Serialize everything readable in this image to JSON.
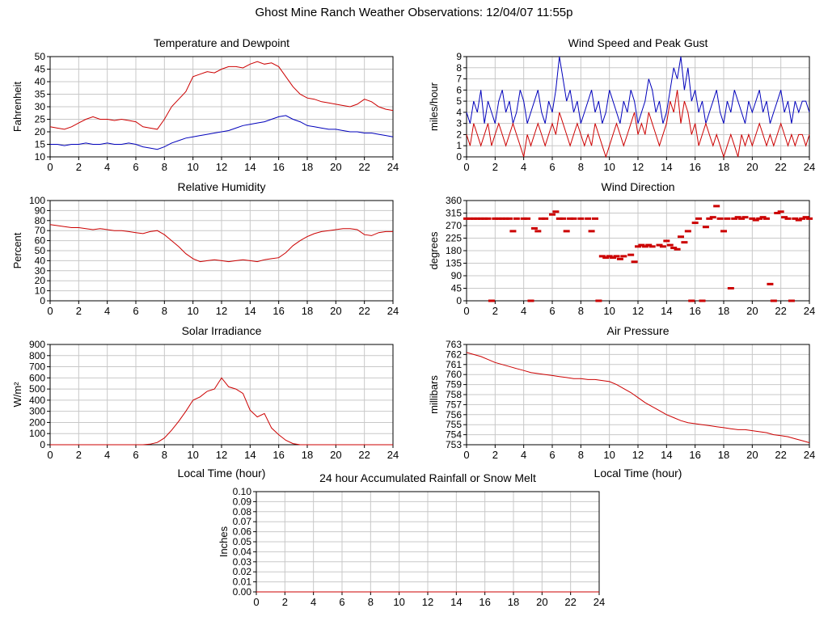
{
  "page_title": "Ghost Mine Ranch Weather Observations: 12/04/07 11:55p",
  "colors": {
    "red": "#cc0000",
    "blue": "#0000bb",
    "grid": "#c8c8c8",
    "frame": "#000000"
  },
  "chart_data": [
    {
      "name": "temperature-dewpoint",
      "type": "line",
      "title": "Temperature and Dewpoint",
      "ylabel": "Fahrenheit",
      "xlabel": "",
      "xlim": [
        0,
        24
      ],
      "ylim": [
        10,
        50
      ],
      "xticks": [
        0,
        2,
        4,
        6,
        8,
        10,
        12,
        14,
        16,
        18,
        20,
        22,
        24
      ],
      "yticks": [
        10,
        15,
        20,
        25,
        30,
        35,
        40,
        45,
        50
      ],
      "x_step": 0.5,
      "series": [
        {
          "name": "Temperature",
          "color": "red",
          "values": [
            22,
            21.5,
            21,
            22,
            23.5,
            25,
            26,
            25,
            25,
            24.5,
            25,
            24.5,
            24,
            22,
            21.5,
            21,
            25,
            30,
            33,
            36,
            42,
            43,
            44,
            43.5,
            45,
            46,
            46,
            45.5,
            47,
            48,
            47,
            47.5,
            46,
            42,
            38,
            35,
            33.5,
            33,
            32,
            31.5,
            31,
            30.5,
            30,
            31,
            33,
            32,
            30,
            29,
            28.5
          ]
        },
        {
          "name": "Dewpoint",
          "color": "blue",
          "values": [
            15,
            15,
            14.5,
            15,
            15,
            15.5,
            15,
            15,
            15.5,
            15,
            15,
            15.5,
            15,
            14,
            13.5,
            13,
            14,
            15.5,
            16.5,
            17.5,
            18,
            18.5,
            19,
            19.5,
            20,
            20.5,
            21.5,
            22.5,
            23,
            23.5,
            24,
            25,
            26,
            26.5,
            25,
            24,
            22.5,
            22,
            21.5,
            21,
            21,
            20.5,
            20,
            20,
            19.5,
            19.5,
            19,
            18.5,
            18
          ]
        }
      ]
    },
    {
      "name": "wind-speed-peak-gust",
      "type": "line",
      "title": "Wind Speed and Peak Gust",
      "ylabel": "miles/hour",
      "xlabel": "",
      "xlim": [
        0,
        24
      ],
      "ylim": [
        0,
        9
      ],
      "xticks": [
        0,
        2,
        4,
        6,
        8,
        10,
        12,
        14,
        16,
        18,
        20,
        22,
        24
      ],
      "yticks": [
        0,
        1,
        2,
        3,
        4,
        5,
        6,
        7,
        8,
        9
      ],
      "x_step": 0.25,
      "series": [
        {
          "name": "Peak Gust",
          "color": "blue",
          "values": [
            4,
            3,
            5,
            4,
            6,
            3,
            5,
            4,
            3,
            5,
            6,
            4,
            5,
            3,
            4,
            6,
            5,
            3,
            4,
            5,
            6,
            4,
            3,
            5,
            4,
            6,
            9,
            7,
            5,
            6,
            4,
            5,
            3,
            4,
            5,
            6,
            4,
            5,
            3,
            4,
            6,
            5,
            4,
            3,
            5,
            4,
            6,
            5,
            3,
            4,
            5,
            7,
            6,
            4,
            5,
            3,
            4,
            6,
            8,
            7,
            9,
            6,
            8,
            5,
            6,
            4,
            5,
            3,
            4,
            5,
            6,
            4,
            3,
            5,
            4,
            6,
            5,
            4,
            3,
            5,
            4,
            5,
            6,
            4,
            5,
            3,
            4,
            5,
            6,
            4,
            5,
            3,
            5,
            4,
            5,
            5,
            4
          ]
        },
        {
          "name": "Wind Speed",
          "color": "red",
          "values": [
            2,
            1,
            3,
            2,
            1,
            2,
            3,
            1,
            2,
            3,
            2,
            1,
            2,
            3,
            2,
            1,
            0,
            2,
            1,
            2,
            3,
            2,
            1,
            2,
            3,
            2,
            4,
            3,
            2,
            1,
            2,
            3,
            2,
            1,
            2,
            1,
            3,
            2,
            1,
            0,
            1,
            2,
            3,
            2,
            1,
            2,
            3,
            4,
            2,
            3,
            2,
            4,
            3,
            2,
            1,
            2,
            3,
            5,
            4,
            6,
            3,
            5,
            4,
            2,
            3,
            1,
            2,
            3,
            2,
            1,
            2,
            1,
            0,
            1,
            2,
            1,
            0,
            2,
            1,
            2,
            1,
            2,
            3,
            2,
            1,
            2,
            1,
            2,
            3,
            2,
            1,
            2,
            1,
            2,
            2,
            1,
            2
          ]
        }
      ]
    },
    {
      "name": "relative-humidity",
      "type": "line",
      "title": "Relative Humidity",
      "ylabel": "Percent",
      "xlabel": "",
      "xlim": [
        0,
        24
      ],
      "ylim": [
        0,
        100
      ],
      "xticks": [
        0,
        2,
        4,
        6,
        8,
        10,
        12,
        14,
        16,
        18,
        20,
        22,
        24
      ],
      "yticks": [
        0,
        10,
        20,
        30,
        40,
        50,
        60,
        70,
        80,
        90,
        100
      ],
      "x_step": 0.5,
      "series": [
        {
          "name": "Relative Humidity",
          "color": "red",
          "values": [
            76,
            75,
            74,
            73,
            73,
            72,
            71,
            72,
            71,
            70,
            70,
            69,
            68,
            67,
            69,
            70,
            66,
            60,
            54,
            47,
            42,
            39,
            40,
            41,
            40,
            39,
            40,
            41,
            40,
            39,
            41,
            42,
            43,
            48,
            55,
            60,
            64,
            67,
            69,
            70,
            71,
            72,
            72,
            71,
            66,
            65,
            68,
            69,
            69
          ]
        }
      ]
    },
    {
      "name": "wind-direction",
      "type": "scatter",
      "title": "Wind Direction",
      "ylabel": "degrees",
      "xlabel": "",
      "xlim": [
        0,
        24
      ],
      "ylim": [
        0,
        360
      ],
      "xticks": [
        0,
        2,
        4,
        6,
        8,
        10,
        12,
        14,
        16,
        18,
        20,
        22,
        24
      ],
      "yticks": [
        0,
        45,
        90,
        135,
        180,
        225,
        270,
        315,
        360
      ],
      "points": [
        [
          0,
          295
        ],
        [
          0.25,
          295
        ],
        [
          0.5,
          295
        ],
        [
          0.75,
          295
        ],
        [
          1,
          295
        ],
        [
          1.25,
          295
        ],
        [
          1.5,
          295
        ],
        [
          1.75,
          0
        ],
        [
          2,
          295
        ],
        [
          2.25,
          295
        ],
        [
          2.5,
          295
        ],
        [
          2.75,
          295
        ],
        [
          3,
          295
        ],
        [
          3.25,
          250
        ],
        [
          3.5,
          295
        ],
        [
          4,
          295
        ],
        [
          4.25,
          295
        ],
        [
          4.5,
          0
        ],
        [
          4.75,
          260
        ],
        [
          5,
          250
        ],
        [
          5.25,
          295
        ],
        [
          5.5,
          295
        ],
        [
          6,
          310
        ],
        [
          6.25,
          320
        ],
        [
          6.5,
          295
        ],
        [
          6.75,
          295
        ],
        [
          7,
          250
        ],
        [
          7.25,
          295
        ],
        [
          7.5,
          295
        ],
        [
          8,
          295
        ],
        [
          8.5,
          295
        ],
        [
          8.75,
          250
        ],
        [
          9,
          295
        ],
        [
          9.25,
          0
        ],
        [
          9.5,
          160
        ],
        [
          9.75,
          155
        ],
        [
          10,
          160
        ],
        [
          10.25,
          155
        ],
        [
          10.5,
          160
        ],
        [
          10.75,
          150
        ],
        [
          11,
          160
        ],
        [
          11.5,
          165
        ],
        [
          11.75,
          140
        ],
        [
          12,
          195
        ],
        [
          12.25,
          200
        ],
        [
          12.5,
          195
        ],
        [
          12.75,
          200
        ],
        [
          13,
          195
        ],
        [
          13.5,
          200
        ],
        [
          13.75,
          195
        ],
        [
          14,
          215
        ],
        [
          14.25,
          200
        ],
        [
          14.5,
          190
        ],
        [
          14.75,
          185
        ],
        [
          15,
          230
        ],
        [
          15.25,
          210
        ],
        [
          15.5,
          250
        ],
        [
          15.75,
          0
        ],
        [
          16,
          280
        ],
        [
          16.25,
          295
        ],
        [
          16.5,
          0
        ],
        [
          16.75,
          265
        ],
        [
          17,
          295
        ],
        [
          17.25,
          300
        ],
        [
          17.5,
          340
        ],
        [
          17.75,
          295
        ],
        [
          18,
          250
        ],
        [
          18.25,
          295
        ],
        [
          18.5,
          45
        ],
        [
          18.75,
          295
        ],
        [
          19,
          300
        ],
        [
          19.25,
          295
        ],
        [
          19.5,
          300
        ],
        [
          20,
          295
        ],
        [
          20.25,
          290
        ],
        [
          20.5,
          295
        ],
        [
          20.75,
          300
        ],
        [
          21,
          295
        ],
        [
          21.25,
          60
        ],
        [
          21.5,
          0
        ],
        [
          21.75,
          315
        ],
        [
          22,
          320
        ],
        [
          22.25,
          300
        ],
        [
          22.5,
          295
        ],
        [
          22.75,
          0
        ],
        [
          23,
          295
        ],
        [
          23.25,
          290
        ],
        [
          23.5,
          295
        ],
        [
          23.75,
          300
        ],
        [
          24,
          295
        ]
      ]
    },
    {
      "name": "solar-irradiance",
      "type": "line",
      "title": "Solar Irradiance",
      "ylabel": "W/m²",
      "xlabel": "Local Time (hour)",
      "xlim": [
        0,
        24
      ],
      "ylim": [
        0,
        900
      ],
      "xticks": [
        0,
        2,
        4,
        6,
        8,
        10,
        12,
        14,
        16,
        18,
        20,
        22,
        24
      ],
      "yticks": [
        0,
        100,
        200,
        300,
        400,
        500,
        600,
        700,
        800,
        900
      ],
      "x_step": 0.5,
      "series": [
        {
          "name": "Solar Irradiance",
          "color": "red",
          "values": [
            0,
            0,
            0,
            0,
            0,
            0,
            0,
            0,
            0,
            0,
            0,
            0,
            0,
            0,
            5,
            20,
            60,
            130,
            210,
            300,
            400,
            430,
            480,
            500,
            600,
            520,
            500,
            460,
            310,
            250,
            280,
            150,
            90,
            40,
            10,
            0,
            0,
            0,
            0,
            0,
            0,
            0,
            0,
            0,
            0,
            0,
            0,
            0,
            0
          ]
        }
      ]
    },
    {
      "name": "air-pressure",
      "type": "line",
      "title": "Air Pressure",
      "ylabel": "millibars",
      "xlabel": "Local Time (hour)",
      "xlim": [
        0,
        24
      ],
      "ylim": [
        753,
        763
      ],
      "xticks": [
        0,
        2,
        4,
        6,
        8,
        10,
        12,
        14,
        16,
        18,
        20,
        22,
        24
      ],
      "yticks": [
        753,
        754,
        755,
        756,
        757,
        758,
        759,
        760,
        761,
        762,
        763
      ],
      "x_step": 0.5,
      "series": [
        {
          "name": "Air Pressure",
          "color": "red",
          "values": [
            762.2,
            762,
            761.8,
            761.5,
            761.2,
            761,
            760.8,
            760.6,
            760.4,
            760.2,
            760.1,
            760,
            759.9,
            759.8,
            759.7,
            759.6,
            759.6,
            759.5,
            759.5,
            759.4,
            759.3,
            759,
            758.6,
            758.2,
            757.7,
            757.2,
            756.8,
            756.4,
            756,
            755.7,
            755.4,
            755.2,
            755.1,
            755,
            754.9,
            754.8,
            754.7,
            754.6,
            754.5,
            754.5,
            754.4,
            754.3,
            754.2,
            754,
            753.9,
            753.8,
            753.6,
            753.4,
            753.2
          ]
        }
      ]
    },
    {
      "name": "accumulated-rainfall",
      "type": "line",
      "title": "24 hour Accumulated Rainfall or Snow Melt",
      "ylabel": "Inches",
      "xlabel": "",
      "xlim": [
        0,
        24
      ],
      "ylim": [
        0,
        0.1
      ],
      "xticks": [
        0,
        2,
        4,
        6,
        8,
        10,
        12,
        14,
        16,
        18,
        20,
        22,
        24
      ],
      "yticks": [
        0,
        0.01,
        0.02,
        0.03,
        0.04,
        0.05,
        0.06,
        0.07,
        0.08,
        0.09,
        0.1
      ],
      "ydecimals": 2,
      "x_step": 24,
      "series": [
        {
          "name": "Accumulated Rainfall",
          "color": "red",
          "values": [
            0,
            0
          ]
        }
      ]
    }
  ]
}
